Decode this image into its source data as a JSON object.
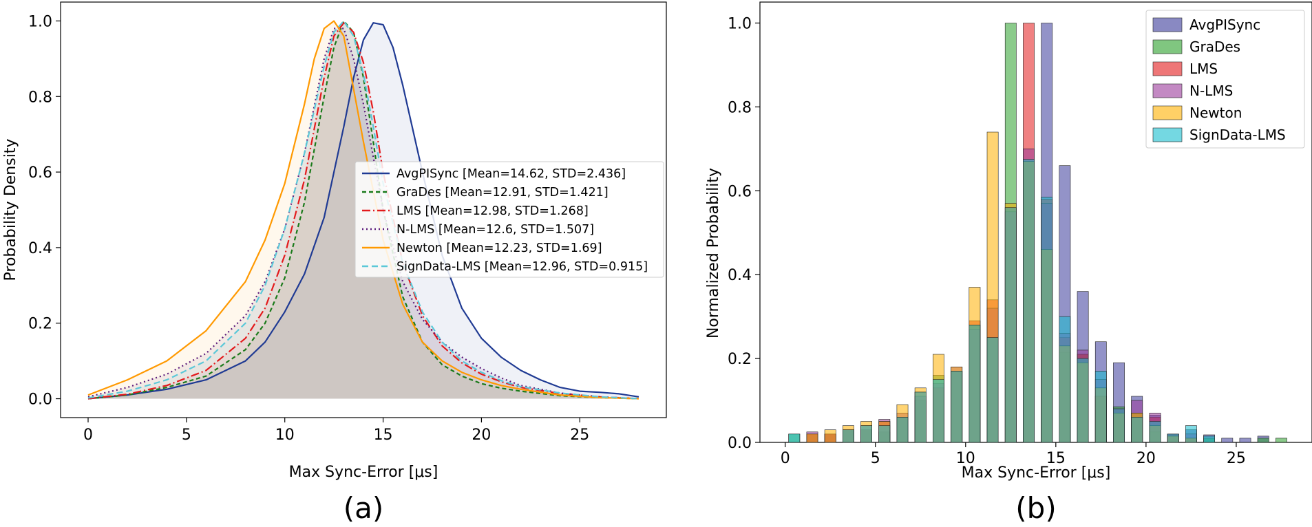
{
  "panels": {
    "a": {
      "label": "(a)"
    },
    "b": {
      "label": "(b)"
    }
  },
  "chart_data": [
    {
      "type": "line",
      "panel": "a",
      "title": "",
      "xlabel": "Max Sync-Error [μs]",
      "ylabel": "Probability Density",
      "xlim": [
        -1.4,
        29.4
      ],
      "ylim": [
        -0.05,
        1.05
      ],
      "xticks": [
        0,
        5,
        10,
        15,
        20,
        25
      ],
      "yticks": [
        0.0,
        0.2,
        0.4,
        0.6,
        0.8,
        1.0
      ],
      "legend_position": "center-right",
      "series": [
        {
          "name": "AvgPISync",
          "legend": "AvgPISync [Mean=14.62, STD=2.436]",
          "color": "#1f3a93",
          "dash": "solid",
          "x": [
            0,
            2,
            4,
            6,
            8,
            9,
            10,
            11,
            12,
            13,
            13.5,
            14,
            14.5,
            15,
            15.5,
            16,
            17,
            18,
            19,
            20,
            21,
            22,
            23,
            24,
            25,
            26,
            27,
            28
          ],
          "y": [
            0.0,
            0.01,
            0.025,
            0.05,
            0.1,
            0.15,
            0.23,
            0.33,
            0.48,
            0.72,
            0.85,
            0.95,
            0.995,
            0.99,
            0.93,
            0.83,
            0.6,
            0.38,
            0.24,
            0.16,
            0.11,
            0.075,
            0.05,
            0.03,
            0.02,
            0.017,
            0.013,
            0.005
          ]
        },
        {
          "name": "GraDes",
          "legend": "GraDes [Mean=12.91, STD=1.421]",
          "color": "#1a7a1a",
          "dash": "6,4",
          "x": [
            0,
            2,
            4,
            6,
            8,
            9,
            10,
            11,
            12,
            12.5,
            13,
            13.5,
            14,
            14.5,
            15,
            16,
            17,
            18,
            19,
            20,
            21,
            22,
            24,
            26,
            28
          ],
          "y": [
            0.0,
            0.01,
            0.03,
            0.06,
            0.13,
            0.2,
            0.32,
            0.52,
            0.8,
            0.93,
            1.0,
            0.97,
            0.85,
            0.68,
            0.5,
            0.27,
            0.15,
            0.09,
            0.06,
            0.04,
            0.028,
            0.02,
            0.008,
            0.003,
            0.0
          ]
        },
        {
          "name": "LMS",
          "legend": "LMS [Mean=12.98, STD=1.268]",
          "color": "#e31a1c",
          "dash": "12,4,2,4",
          "x": [
            0,
            2,
            4,
            6,
            8,
            9,
            10,
            11,
            12,
            12.5,
            13,
            13.5,
            14,
            14.5,
            15,
            16,
            17,
            18,
            19,
            20,
            21,
            22,
            24,
            26,
            28
          ],
          "y": [
            0.0,
            0.012,
            0.035,
            0.075,
            0.16,
            0.24,
            0.38,
            0.58,
            0.85,
            0.96,
            0.995,
            0.97,
            0.89,
            0.76,
            0.6,
            0.36,
            0.22,
            0.14,
            0.095,
            0.065,
            0.045,
            0.03,
            0.014,
            0.005,
            0.0
          ]
        },
        {
          "name": "N-LMS",
          "legend": "N-LMS [Mean=12.6, STD=1.507]",
          "color": "#5b1a7a",
          "dash": "2,4",
          "x": [
            0,
            2,
            4,
            6,
            8,
            9,
            10,
            11,
            12,
            12.5,
            13,
            13.5,
            14,
            14.5,
            15,
            16,
            17,
            18,
            19,
            20,
            21,
            22,
            24,
            26,
            28
          ],
          "y": [
            0.005,
            0.03,
            0.065,
            0.12,
            0.22,
            0.31,
            0.45,
            0.65,
            0.9,
            0.98,
            0.98,
            0.9,
            0.78,
            0.64,
            0.5,
            0.31,
            0.21,
            0.15,
            0.11,
            0.08,
            0.055,
            0.035,
            0.015,
            0.005,
            0.0
          ]
        },
        {
          "name": "Newton",
          "legend": "Newton [Mean=12.23, STD=1.69]",
          "color": "#ff9900",
          "dash": "solid",
          "x": [
            0,
            2,
            4,
            6,
            8,
            9,
            10,
            11,
            11.5,
            12,
            12.5,
            13,
            13.5,
            14,
            15,
            16,
            17,
            18,
            19,
            20,
            21,
            22,
            24,
            26,
            28
          ],
          "y": [
            0.01,
            0.05,
            0.1,
            0.18,
            0.31,
            0.42,
            0.57,
            0.78,
            0.9,
            0.98,
            1.0,
            0.96,
            0.82,
            0.68,
            0.42,
            0.25,
            0.15,
            0.1,
            0.07,
            0.05,
            0.035,
            0.025,
            0.01,
            0.003,
            0.0
          ]
        },
        {
          "name": "SignData-LMS",
          "legend": "SignData-LMS [Mean=12.96, STD=0.915]",
          "color": "#5bc8d8",
          "dash": "9,5",
          "x": [
            0,
            2,
            4,
            6,
            8,
            9,
            10,
            11,
            12,
            12.5,
            13,
            13.5,
            14,
            14.5,
            15,
            16,
            17,
            18,
            19,
            20,
            21,
            22,
            24,
            26,
            28
          ],
          "y": [
            0.002,
            0.02,
            0.05,
            0.1,
            0.2,
            0.3,
            0.45,
            0.65,
            0.88,
            0.97,
            1.0,
            0.96,
            0.86,
            0.72,
            0.57,
            0.36,
            0.23,
            0.15,
            0.1,
            0.07,
            0.048,
            0.032,
            0.015,
            0.005,
            0.0
          ]
        }
      ]
    },
    {
      "type": "bar",
      "panel": "b",
      "title": "",
      "xlabel": "Max Sync-Error [μs]",
      "ylabel": "Normalized Probability",
      "xlim": [
        -1.4,
        29.2
      ],
      "ylim": [
        0,
        1.05
      ],
      "xticks": [
        0,
        5,
        10,
        15,
        20,
        25
      ],
      "yticks": [
        0.0,
        0.2,
        0.4,
        0.6,
        0.8,
        1.0
      ],
      "legend_position": "top-right",
      "categories": [
        0.5,
        1.5,
        2.5,
        3.5,
        4.5,
        5.5,
        6.5,
        7.5,
        8.5,
        9.5,
        10.5,
        11.5,
        12.5,
        13.5,
        14.5,
        15.5,
        16.5,
        17.5,
        18.5,
        19.5,
        20.5,
        21.5,
        22.5,
        23.5,
        24.5,
        25.5,
        26.5,
        27.5
      ],
      "series": [
        {
          "name": "AvgPISync",
          "color": "#3a3a9a",
          "values": [
            0.0,
            0.0,
            0.0,
            0.0,
            0.0,
            0.0,
            0.0,
            0.0,
            0.0,
            0.0,
            0.0,
            0.0,
            0.0,
            0.0,
            1.0,
            0.66,
            0.36,
            0.24,
            0.19,
            0.11,
            0.065,
            0.02,
            0.03,
            0.018,
            0.01,
            0.01,
            0.015,
            0.0
          ]
        },
        {
          "name": "GraDes",
          "color": "#2ca02c",
          "values": [
            0.02,
            0.02,
            0.02,
            0.03,
            0.03,
            0.025,
            0.06,
            0.1,
            0.16,
            0.17,
            0.28,
            0.25,
            1.0,
            0.67,
            0.46,
            0.215,
            0.21,
            0.11,
            0.085,
            0.07,
            0.025,
            0.02,
            0.01,
            0.01,
            0.0,
            0.0,
            0.01,
            0.01
          ]
        },
        {
          "name": "LMS",
          "color": "#e31a1c",
          "values": [
            0.0,
            0.02,
            0.02,
            0.03,
            0.03,
            0.05,
            0.06,
            0.12,
            0.13,
            0.17,
            0.29,
            0.34,
            0.56,
            1.0,
            0.58,
            0.25,
            0.21,
            0.11,
            0.08,
            0.06,
            0.06,
            0.02,
            0.01,
            0.0,
            0.0,
            0.0,
            0.0,
            0.0
          ]
        },
        {
          "name": "N-LMS",
          "color": "#9b3b9b",
          "values": [
            0.0,
            0.025,
            0.02,
            0.03,
            0.04,
            0.055,
            0.07,
            0.11,
            0.14,
            0.18,
            0.27,
            0.32,
            0.55,
            0.7,
            0.57,
            0.26,
            0.22,
            0.15,
            0.08,
            0.1,
            0.07,
            0.02,
            0.02,
            0.0,
            0.0,
            0.0,
            0.0,
            0.0
          ]
        },
        {
          "name": "Newton",
          "color": "#ffb000",
          "values": [
            0.0,
            0.02,
            0.03,
            0.04,
            0.05,
            0.05,
            0.09,
            0.13,
            0.21,
            0.18,
            0.37,
            0.74,
            0.57,
            0.67,
            0.46,
            0.23,
            0.19,
            0.13,
            0.07,
            0.07,
            0.04,
            0.015,
            0.01,
            0.0,
            0.0,
            0.0,
            0.0,
            0.0
          ]
        },
        {
          "name": "SignData-LMS",
          "color": "#17becf",
          "values": [
            0.02,
            0.0,
            0.0,
            0.03,
            0.04,
            0.04,
            0.06,
            0.12,
            0.15,
            0.17,
            0.28,
            0.25,
            0.56,
            0.675,
            0.585,
            0.3,
            0.2,
            0.17,
            0.08,
            0.06,
            0.05,
            0.02,
            0.04,
            0.015,
            0.0,
            0.0,
            0.0,
            0.0
          ]
        }
      ]
    }
  ]
}
